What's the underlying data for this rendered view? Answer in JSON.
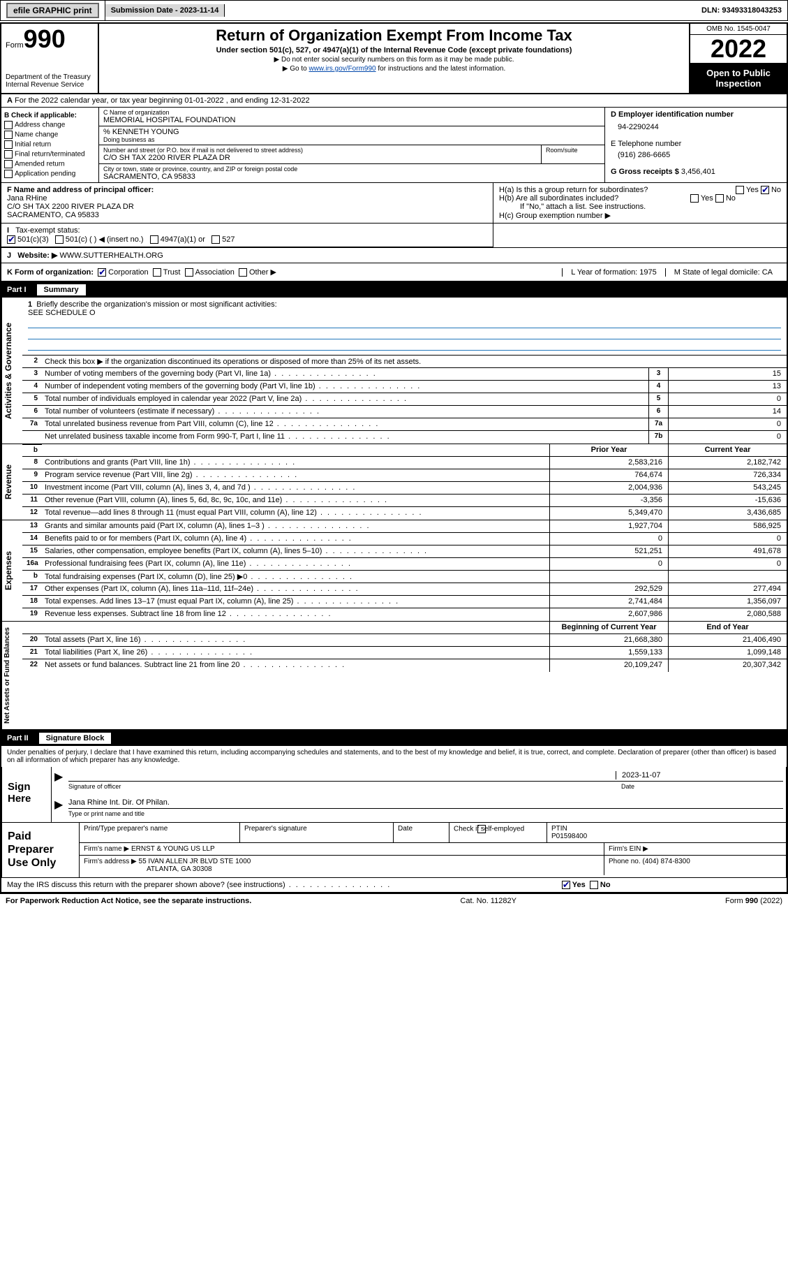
{
  "topbar": {
    "efile": "efile GRAPHIC print",
    "submission_label": "Submission Date - 2023-11-14",
    "dln": "DLN: 93493318043253"
  },
  "header": {
    "form_word": "Form",
    "form_num": "990",
    "dept": "Department of the Treasury Internal Revenue Service",
    "title": "Return of Organization Exempt From Income Tax",
    "subtitle": "Under section 501(c), 527, or 4947(a)(1) of the Internal Revenue Code (except private foundations)",
    "instr1": "▶ Do not enter social security numbers on this form as it may be made public.",
    "instr2_pre": "▶ Go to ",
    "instr2_link": "www.irs.gov/Form990",
    "instr2_post": " for instructions and the latest information.",
    "omb": "OMB No. 1545-0047",
    "year": "2022",
    "open": "Open to Public Inspection"
  },
  "rowA": "For the 2022 calendar year, or tax year beginning 01-01-2022   , and ending 12-31-2022",
  "B": {
    "lbl": "B Check if applicable:",
    "opts": [
      "Address change",
      "Name change",
      "Initial return",
      "Final return/terminated",
      "Amended return",
      "Application pending"
    ]
  },
  "C": {
    "name_lbl": "C Name of organization",
    "name": "MEMORIAL HOSPITAL FOUNDATION",
    "care_of": "% KENNETH YOUNG",
    "dba_lbl": "Doing business as",
    "street_lbl": "Number and street (or P.O. box if mail is not delivered to street address)",
    "room_lbl": "Room/suite",
    "street": "C/O SH TAX 2200 RIVER PLAZA DR",
    "city_lbl": "City or town, state or province, country, and ZIP or foreign postal code",
    "city": "SACRAMENTO, CA  95833"
  },
  "D": {
    "lbl": "D Employer identification number",
    "val": "94-2290244"
  },
  "E": {
    "lbl": "E Telephone number",
    "val": "(916) 286-6665"
  },
  "G": {
    "lbl": "G Gross receipts $",
    "val": "3,456,401"
  },
  "F": {
    "lbl": "F Name and address of principal officer:",
    "name": "Jana RHine",
    "addr1": "C/O SH TAX 2200 RIVER PLAZA DR",
    "addr2": "SACRAMENTO, CA  95833"
  },
  "H": {
    "a": "H(a)  Is this a group return for subordinates?",
    "b": "H(b)  Are all subordinates included?",
    "b_note": "If \"No,\" attach a list. See instructions.",
    "c": "H(c)  Group exemption number ▶",
    "yes": "Yes",
    "no": "No"
  },
  "I": {
    "lbl": "Tax-exempt status:",
    "o1": "501(c)(3)",
    "o2": "501(c) (  ) ◀ (insert no.)",
    "o3": "4947(a)(1) or",
    "o4": "527"
  },
  "J": {
    "lbl": "Website: ▶",
    "val": "WWW.SUTTERHEALTH.ORG"
  },
  "K": {
    "lbl": "K Form of organization:",
    "o1": "Corporation",
    "o2": "Trust",
    "o3": "Association",
    "o4": "Other ▶",
    "L": "L Year of formation: 1975",
    "M": "M State of legal domicile: CA"
  },
  "part1": {
    "label": "Part I",
    "title": "Summary"
  },
  "summary": {
    "q1": "Briefly describe the organization's mission or most significant activities:",
    "mission": "SEE SCHEDULE O",
    "q2": "Check this box ▶        if the organization discontinued its operations or disposed of more than 25% of its net assets.",
    "rows_ag": [
      {
        "n": "3",
        "d": "Number of voting members of the governing body (Part VI, line 1a)",
        "c": "3",
        "v": "15"
      },
      {
        "n": "4",
        "d": "Number of independent voting members of the governing body (Part VI, line 1b)",
        "c": "4",
        "v": "13"
      },
      {
        "n": "5",
        "d": "Total number of individuals employed in calendar year 2022 (Part V, line 2a)",
        "c": "5",
        "v": "0"
      },
      {
        "n": "6",
        "d": "Total number of volunteers (estimate if necessary)",
        "c": "6",
        "v": "14"
      },
      {
        "n": "7a",
        "d": "Total unrelated business revenue from Part VIII, column (C), line 12",
        "c": "7a",
        "v": "0"
      },
      {
        "n": "",
        "d": "Net unrelated business taxable income from Form 990-T, Part I, line 11",
        "c": "7b",
        "v": "0"
      }
    ],
    "head_prior": "Prior Year",
    "head_current": "Current Year",
    "rows_rev": [
      {
        "n": "8",
        "d": "Contributions and grants (Part VIII, line 1h)",
        "p": "2,583,216",
        "c": "2,182,742"
      },
      {
        "n": "9",
        "d": "Program service revenue (Part VIII, line 2g)",
        "p": "764,674",
        "c": "726,334"
      },
      {
        "n": "10",
        "d": "Investment income (Part VIII, column (A), lines 3, 4, and 7d )",
        "p": "2,004,936",
        "c": "543,245"
      },
      {
        "n": "11",
        "d": "Other revenue (Part VIII, column (A), lines 5, 6d, 8c, 9c, 10c, and 11e)",
        "p": "-3,356",
        "c": "-15,636"
      },
      {
        "n": "12",
        "d": "Total revenue—add lines 8 through 11 (must equal Part VIII, column (A), line 12)",
        "p": "5,349,470",
        "c": "3,436,685"
      }
    ],
    "rows_exp": [
      {
        "n": "13",
        "d": "Grants and similar amounts paid (Part IX, column (A), lines 1–3 )",
        "p": "1,927,704",
        "c": "586,925"
      },
      {
        "n": "14",
        "d": "Benefits paid to or for members (Part IX, column (A), line 4)",
        "p": "0",
        "c": "0"
      },
      {
        "n": "15",
        "d": "Salaries, other compensation, employee benefits (Part IX, column (A), lines 5–10)",
        "p": "521,251",
        "c": "491,678"
      },
      {
        "n": "16a",
        "d": "Professional fundraising fees (Part IX, column (A), line 11e)",
        "p": "0",
        "c": "0"
      },
      {
        "n": "b",
        "d": "Total fundraising expenses (Part IX, column (D), line 25) ▶0",
        "p": "",
        "c": ""
      },
      {
        "n": "17",
        "d": "Other expenses (Part IX, column (A), lines 11a–11d, 11f–24e)",
        "p": "292,529",
        "c": "277,494"
      },
      {
        "n": "18",
        "d": "Total expenses. Add lines 13–17 (must equal Part IX, column (A), line 25)",
        "p": "2,741,484",
        "c": "1,356,097"
      },
      {
        "n": "19",
        "d": "Revenue less expenses. Subtract line 18 from line 12",
        "p": "2,607,986",
        "c": "2,080,588"
      }
    ],
    "head_begin": "Beginning of Current Year",
    "head_end": "End of Year",
    "rows_net": [
      {
        "n": "20",
        "d": "Total assets (Part X, line 16)",
        "p": "21,668,380",
        "c": "21,406,490"
      },
      {
        "n": "21",
        "d": "Total liabilities (Part X, line 26)",
        "p": "1,559,133",
        "c": "1,099,148"
      },
      {
        "n": "22",
        "d": "Net assets or fund balances. Subtract line 21 from line 20",
        "p": "20,109,247",
        "c": "20,307,342"
      }
    ]
  },
  "part2": {
    "label": "Part II",
    "title": "Signature Block"
  },
  "sig": {
    "declaration": "Under penalties of perjury, I declare that I have examined this return, including accompanying schedules and statements, and to the best of my knowledge and belief, it is true, correct, and complete. Declaration of preparer (other than officer) is based on all information of which preparer has any knowledge.",
    "sign_here": "Sign Here",
    "sig_officer": "Signature of officer",
    "date": "2023-11-07",
    "date_lbl": "Date",
    "name": "Jana Rhine Int. Dir. Of Philan.",
    "name_lbl": "Type or print name and title"
  },
  "paid": {
    "lbl": "Paid Preparer Use Only",
    "h1": "Print/Type preparer's name",
    "h2": "Preparer's signature",
    "h3": "Date",
    "check": "Check         if self-employed",
    "ptin_lbl": "PTIN",
    "ptin": "P01598400",
    "firm_name_lbl": "Firm's name    ▶",
    "firm_name": "ERNST & YOUNG US LLP",
    "firm_ein_lbl": "Firm's EIN ▶",
    "firm_addr_lbl": "Firm's address ▶",
    "firm_addr": "55 IVAN ALLEN JR BLVD STE 1000",
    "firm_city": "ATLANTA, GA  30308",
    "phone_lbl": "Phone no.",
    "phone": "(404) 874-8300"
  },
  "footer": {
    "discuss": "May the IRS discuss this return with the preparer shown above? (see instructions)",
    "yes": "Yes",
    "no": "No",
    "paperwork": "For Paperwork Reduction Act Notice, see the separate instructions.",
    "cat": "Cat. No. 11282Y",
    "formref": "Form 990 (2022)"
  },
  "tabs": {
    "ag": "Activities & Governance",
    "rev": "Revenue",
    "exp": "Expenses",
    "net": "Net Assets or Fund Balances"
  }
}
